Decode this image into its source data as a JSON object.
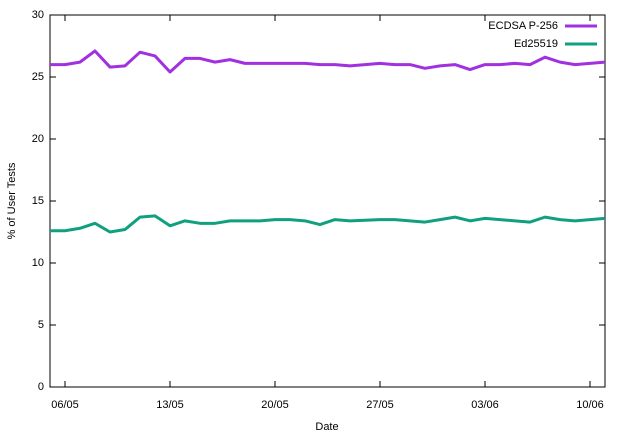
{
  "chart_data": {
    "type": "line",
    "xlabel": "Date",
    "ylabel": "% of User Tests",
    "categories": [
      null,
      "06/05",
      null,
      null,
      null,
      null,
      null,
      null,
      "13/05",
      null,
      null,
      null,
      null,
      null,
      null,
      "20/05",
      null,
      null,
      null,
      null,
      null,
      null,
      "27/05",
      null,
      null,
      null,
      null,
      null,
      null,
      "03/06",
      null,
      null,
      null,
      null,
      null,
      null,
      "10/06",
      null
    ],
    "series": [
      {
        "name": "ECDSA P-256",
        "color": "#a030e0",
        "values": [
          26.0,
          26.0,
          26.2,
          27.1,
          25.8,
          25.9,
          27.0,
          26.7,
          25.4,
          26.5,
          26.5,
          26.2,
          26.4,
          26.1,
          26.1,
          26.1,
          26.1,
          26.1,
          26.0,
          26.0,
          25.9,
          26.0,
          26.1,
          26.0,
          26.0,
          25.7,
          25.9,
          26.0,
          25.6,
          26.0,
          26.0,
          26.1,
          26.0,
          26.6,
          26.2,
          26.0,
          26.1,
          26.2
        ]
      },
      {
        "name": "Ed25519",
        "color": "#10a080",
        "values": [
          12.6,
          12.6,
          12.8,
          13.2,
          12.5,
          12.7,
          13.7,
          13.8,
          13.0,
          13.4,
          13.2,
          13.2,
          13.4,
          13.4,
          13.4,
          13.5,
          13.5,
          13.4,
          13.1,
          13.5,
          13.4,
          13.45,
          13.5,
          13.5,
          13.4,
          13.3,
          13.5,
          13.7,
          13.4,
          13.6,
          13.5,
          13.4,
          13.3,
          13.7,
          13.5,
          13.4,
          13.5,
          13.6
        ]
      }
    ],
    "ylim": [
      0,
      30
    ],
    "yticks": [
      0,
      5,
      10,
      15,
      20,
      25,
      30
    ],
    "grid": false,
    "legend": "top-right"
  }
}
